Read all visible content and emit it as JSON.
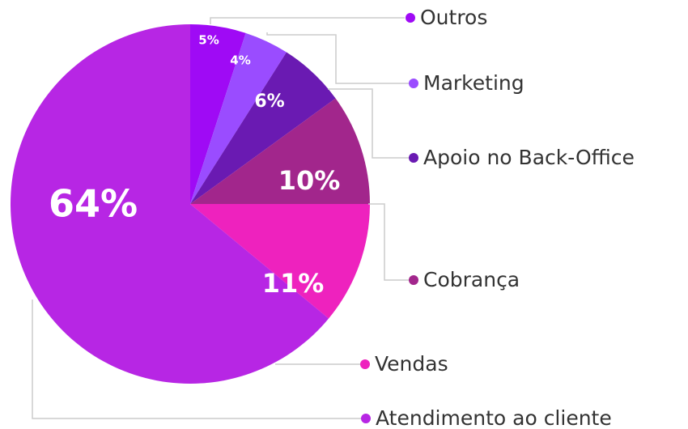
{
  "chart_data": {
    "type": "pie",
    "categories": [
      "Outros",
      "Marketing",
      "Apoio no Back-Office",
      "Cobrança",
      "Vendas",
      "Atendimento ao cliente"
    ],
    "values": [
      5,
      4,
      6,
      10,
      11,
      64
    ],
    "value_labels": [
      "5%",
      "4%",
      "6%",
      "10%",
      "11%",
      "64%"
    ],
    "colors": [
      "#9f0af5",
      "#9a4cff",
      "#6a1ab2",
      "#a2268c",
      "#ee22be",
      "#b726e4"
    ]
  }
}
